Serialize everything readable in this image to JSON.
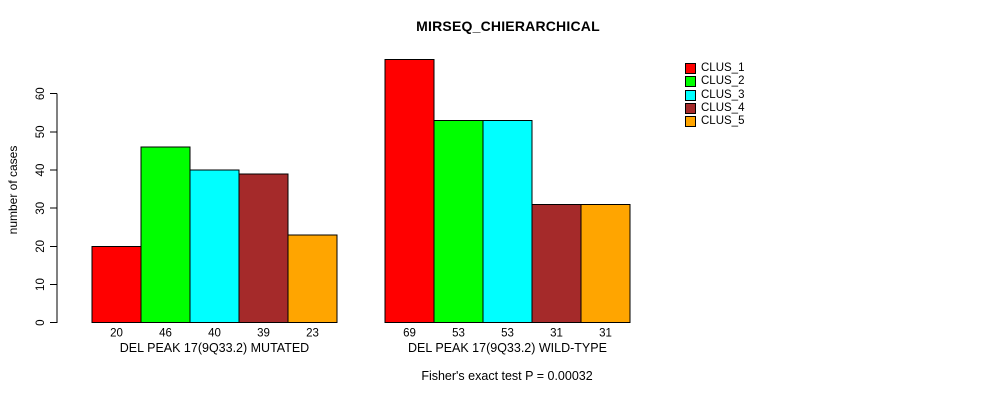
{
  "title": "MIRSEQ_CHIERARCHICAL",
  "y_axis": {
    "label": "number of cases",
    "ticks": [
      0,
      10,
      20,
      30,
      40,
      50,
      60
    ]
  },
  "annotation": "Fisher's exact test P = 0.00032",
  "legend": {
    "items": [
      {
        "label": "CLUS_1",
        "color": "#FF0000"
      },
      {
        "label": "CLUS_2",
        "color": "#00FF00"
      },
      {
        "label": "CLUS_3",
        "color": "#00FFFF"
      },
      {
        "label": "CLUS_4",
        "color": "#A52A2A"
      },
      {
        "label": "CLUS_5",
        "color": "#FFA500"
      }
    ]
  },
  "chart_data": {
    "type": "bar",
    "title": "MIRSEQ_CHIERARCHICAL",
    "xlabel": "",
    "ylabel": "number of cases",
    "ylim": [
      0,
      70
    ],
    "yticks": [
      0,
      10,
      20,
      30,
      40,
      50,
      60
    ],
    "grid": false,
    "legend_position": "top-right",
    "bar_border_color": "#000000",
    "series_names": [
      "CLUS_1",
      "CLUS_2",
      "CLUS_3",
      "CLUS_4",
      "CLUS_5"
    ],
    "colors": [
      "#FF0000",
      "#00FF00",
      "#00FFFF",
      "#A52A2A",
      "#FFA500"
    ],
    "groups": [
      {
        "label": "DEL PEAK 17(9Q33.2) MUTATED",
        "values": [
          20,
          46,
          40,
          39,
          23
        ]
      },
      {
        "label": "DEL PEAK 17(9Q33.2) WILD-TYPE",
        "values": [
          69,
          53,
          53,
          31,
          31
        ]
      }
    ],
    "bar_value_labels_shown": true,
    "annotation": "Fisher's exact test P = 0.00032"
  }
}
